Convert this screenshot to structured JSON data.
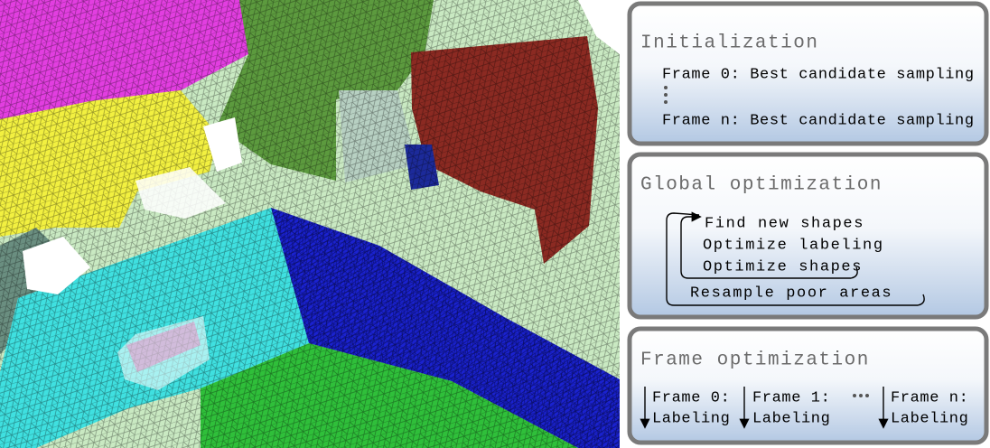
{
  "panels": [
    {
      "title": "Initialization",
      "lines": [
        "Frame 0: Best candidate sampling",
        "Frame n: Best candidate sampling"
      ]
    },
    {
      "title": "Global optimization",
      "lines": [
        "Find new shapes",
        "Optimize labeling",
        "Optimize shapes",
        "Resample poor areas"
      ]
    },
    {
      "title": "Frame optimization",
      "columns": [
        {
          "frame": "Frame 0:",
          "task": "Labeling"
        },
        {
          "frame": "Frame 1:",
          "task": "Labeling"
        },
        {
          "frame": "Frame n:",
          "task": "Labeling"
        }
      ]
    }
  ]
}
